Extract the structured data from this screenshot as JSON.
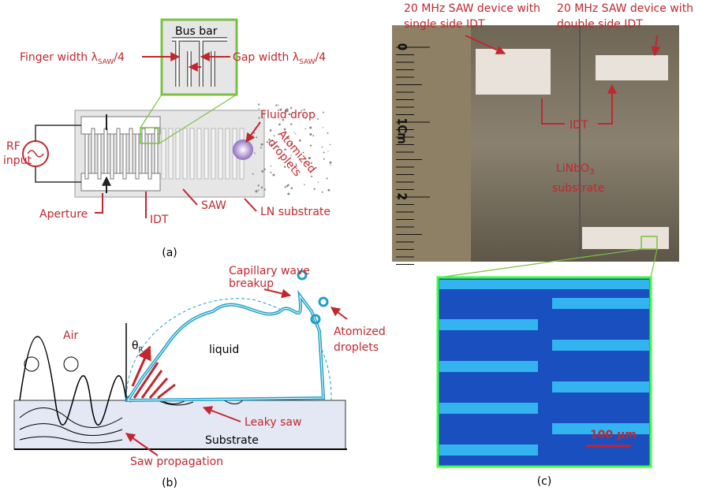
{
  "panel_a": {
    "bus_bar": "Bus bar",
    "finger_width": {
      "text": "Finger width λ",
      "sub": "SAW",
      "tail": "/4"
    },
    "gap_width": {
      "text": "Gap width λ",
      "sub": "SAW",
      "tail": "/4"
    },
    "fluid_drop": "Fluid drop",
    "atomized": [
      "Atomized",
      "droplets"
    ],
    "rf_input": [
      "RF",
      "input"
    ],
    "aperture": "Aperture",
    "idt": "IDT",
    "saw": "SAW",
    "ln_substrate": "LN substrate",
    "caption": "(a)"
  },
  "panel_b": {
    "capillary": [
      "Capillary wave",
      "breakup"
    ],
    "atomized": [
      "Atomized",
      "droplets"
    ],
    "air": "Air",
    "theta": {
      "text": "θ",
      "sub": "R"
    },
    "liquid": "liquid",
    "leaky_saw": "Leaky saw",
    "substrate": "Substrate",
    "saw_propagation": "Saw propagation",
    "caption": "(b)"
  },
  "panel_c": {
    "single": [
      "20 MHz SAW device with",
      "single side IDT"
    ],
    "double": [
      "20 MHz SAW device with",
      "double side IDT"
    ],
    "idt": "IDT",
    "substrate": {
      "text": "LiNbO",
      "sub": "3",
      "line2": "substrate"
    },
    "ruler": [
      "0",
      "1Cm",
      "2"
    ],
    "scale_bar": "100 µm",
    "caption": "(c)"
  }
}
